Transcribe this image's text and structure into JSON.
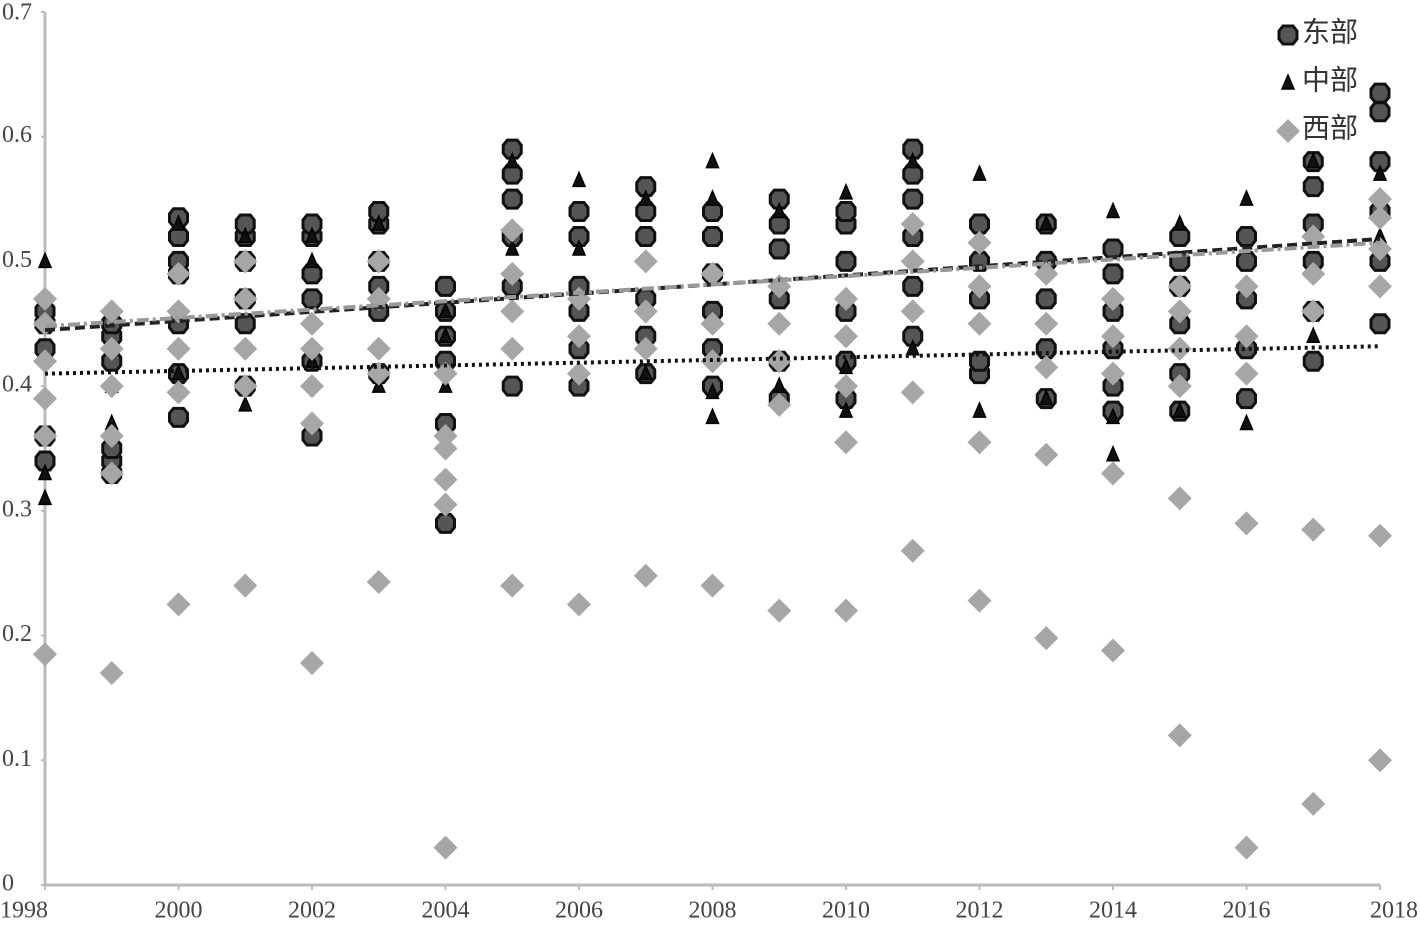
{
  "chart_data": {
    "type": "scatter",
    "xlim": [
      1998,
      2018
    ],
    "xticks": [
      1998,
      2000,
      2002,
      2004,
      2006,
      2008,
      2010,
      2012,
      2014,
      2016,
      2018
    ],
    "ylim": [
      0,
      0.7
    ],
    "yticks": [
      0,
      0.1,
      0.2,
      0.3,
      0.4,
      0.5,
      0.6,
      0.7
    ],
    "legend": "top-right",
    "series": [
      {
        "name": "东部",
        "color": "#555555",
        "marker": "circle",
        "x": [
          1998,
          1998,
          1998,
          1998,
          1998,
          1999,
          1999,
          1999,
          1999,
          1999,
          1999,
          2000,
          2000,
          2000,
          2000,
          2000,
          2000,
          2000,
          2001,
          2001,
          2001,
          2001,
          2001,
          2001,
          2002,
          2002,
          2002,
          2002,
          2002,
          2002,
          2003,
          2003,
          2003,
          2003,
          2003,
          2003,
          2004,
          2004,
          2004,
          2004,
          2004,
          2004,
          2005,
          2005,
          2005,
          2005,
          2005,
          2005,
          2006,
          2006,
          2006,
          2006,
          2006,
          2006,
          2007,
          2007,
          2007,
          2007,
          2007,
          2007,
          2008,
          2008,
          2008,
          2008,
          2008,
          2008,
          2009,
          2009,
          2009,
          2009,
          2009,
          2009,
          2010,
          2010,
          2010,
          2010,
          2010,
          2010,
          2011,
          2011,
          2011,
          2011,
          2011,
          2011,
          2012,
          2012,
          2012,
          2012,
          2012,
          2013,
          2013,
          2013,
          2013,
          2013,
          2014,
          2014,
          2014,
          2014,
          2014,
          2014,
          2015,
          2015,
          2015,
          2015,
          2015,
          2015,
          2016,
          2016,
          2016,
          2016,
          2016,
          2017,
          2017,
          2017,
          2017,
          2017,
          2017,
          2018,
          2018,
          2018,
          2018,
          2018,
          2018
        ],
        "values": [
          0.34,
          0.36,
          0.43,
          0.45,
          0.46,
          0.33,
          0.34,
          0.35,
          0.42,
          0.44,
          0.45,
          0.375,
          0.41,
          0.45,
          0.49,
          0.5,
          0.52,
          0.535,
          0.4,
          0.45,
          0.47,
          0.5,
          0.52,
          0.53,
          0.36,
          0.42,
          0.47,
          0.49,
          0.52,
          0.53,
          0.41,
          0.46,
          0.48,
          0.5,
          0.53,
          0.54,
          0.29,
          0.37,
          0.42,
          0.44,
          0.46,
          0.48,
          0.4,
          0.48,
          0.52,
          0.55,
          0.57,
          0.59,
          0.4,
          0.43,
          0.46,
          0.48,
          0.52,
          0.54,
          0.41,
          0.44,
          0.47,
          0.52,
          0.54,
          0.56,
          0.4,
          0.43,
          0.46,
          0.49,
          0.52,
          0.54,
          0.39,
          0.42,
          0.47,
          0.51,
          0.53,
          0.55,
          0.39,
          0.42,
          0.46,
          0.5,
          0.53,
          0.54,
          0.44,
          0.48,
          0.52,
          0.55,
          0.57,
          0.59,
          0.41,
          0.42,
          0.47,
          0.5,
          0.53,
          0.39,
          0.43,
          0.47,
          0.5,
          0.53,
          0.38,
          0.4,
          0.43,
          0.46,
          0.49,
          0.51,
          0.38,
          0.41,
          0.45,
          0.48,
          0.5,
          0.52,
          0.39,
          0.43,
          0.47,
          0.5,
          0.52,
          0.42,
          0.46,
          0.5,
          0.53,
          0.56,
          0.58,
          0.45,
          0.5,
          0.54,
          0.58,
          0.62,
          0.635
        ],
        "trendline": {
          "x": [
            1998,
            2018
          ],
          "values": [
            0.445,
            0.518
          ],
          "color": "#222222",
          "dash": "10 5"
        }
      },
      {
        "name": "中部",
        "color": "#111111",
        "marker": "triangle",
        "x": [
          1998,
          1998,
          1998,
          1999,
          1999,
          2000,
          2000,
          2001,
          2001,
          2002,
          2002,
          2002,
          2003,
          2003,
          2004,
          2004,
          2004,
          2005,
          2005,
          2006,
          2006,
          2007,
          2007,
          2008,
          2008,
          2008,
          2008,
          2009,
          2009,
          2010,
          2010,
          2010,
          2011,
          2011,
          2012,
          2012,
          2013,
          2013,
          2014,
          2014,
          2014,
          2015,
          2015,
          2016,
          2016,
          2017,
          2017,
          2018,
          2018
        ],
        "values": [
          0.31,
          0.33,
          0.5,
          0.37,
          0.4,
          0.41,
          0.53,
          0.385,
          0.52,
          0.42,
          0.5,
          0.52,
          0.4,
          0.53,
          0.4,
          0.44,
          0.46,
          0.51,
          0.58,
          0.51,
          0.565,
          0.41,
          0.55,
          0.375,
          0.395,
          0.55,
          0.58,
          0.4,
          0.54,
          0.38,
          0.415,
          0.555,
          0.43,
          0.58,
          0.38,
          0.57,
          0.39,
          0.53,
          0.345,
          0.375,
          0.54,
          0.38,
          0.53,
          0.37,
          0.55,
          0.44,
          0.58,
          0.52,
          0.57
        ],
        "trendline": {
          "x": [
            1998,
            2018
          ],
          "values": [
            0.41,
            0.432
          ],
          "color": "#111111",
          "dash": "3 4"
        }
      },
      {
        "name": "西部",
        "color": "#a6a6a6",
        "marker": "diamond",
        "x": [
          1998,
          1998,
          1998,
          1998,
          1998,
          1998,
          1999,
          1999,
          1999,
          1999,
          1999,
          1999,
          2000,
          2000,
          2000,
          2000,
          2000,
          2001,
          2001,
          2001,
          2001,
          2001,
          2002,
          2002,
          2002,
          2002,
          2002,
          2003,
          2003,
          2003,
          2003,
          2003,
          2004,
          2004,
          2004,
          2004,
          2004,
          2004,
          2005,
          2005,
          2005,
          2005,
          2005,
          2006,
          2006,
          2006,
          2006,
          2007,
          2007,
          2007,
          2007,
          2008,
          2008,
          2008,
          2008,
          2009,
          2009,
          2009,
          2009,
          2009,
          2010,
          2010,
          2010,
          2010,
          2010,
          2011,
          2011,
          2011,
          2011,
          2011,
          2012,
          2012,
          2012,
          2012,
          2012,
          2013,
          2013,
          2013,
          2013,
          2013,
          2014,
          2014,
          2014,
          2014,
          2014,
          2015,
          2015,
          2015,
          2015,
          2015,
          2015,
          2016,
          2016,
          2016,
          2016,
          2016,
          2017,
          2017,
          2017,
          2017,
          2017,
          2018,
          2018,
          2018,
          2018,
          2018,
          2018
        ],
        "values": [
          0.185,
          0.36,
          0.39,
          0.42,
          0.45,
          0.47,
          0.17,
          0.33,
          0.36,
          0.4,
          0.43,
          0.46,
          0.225,
          0.395,
          0.43,
          0.46,
          0.49,
          0.24,
          0.4,
          0.43,
          0.47,
          0.5,
          0.178,
          0.37,
          0.4,
          0.43,
          0.45,
          0.243,
          0.41,
          0.43,
          0.47,
          0.5,
          0.03,
          0.305,
          0.325,
          0.35,
          0.36,
          0.41,
          0.24,
          0.43,
          0.46,
          0.49,
          0.525,
          0.225,
          0.41,
          0.44,
          0.47,
          0.248,
          0.43,
          0.46,
          0.5,
          0.24,
          0.42,
          0.45,
          0.49,
          0.22,
          0.385,
          0.42,
          0.45,
          0.48,
          0.22,
          0.355,
          0.4,
          0.44,
          0.47,
          0.268,
          0.395,
          0.46,
          0.5,
          0.53,
          0.228,
          0.355,
          0.45,
          0.48,
          0.515,
          0.198,
          0.345,
          0.415,
          0.45,
          0.49,
          0.188,
          0.33,
          0.41,
          0.44,
          0.47,
          0.12,
          0.31,
          0.4,
          0.43,
          0.46,
          0.48,
          0.03,
          0.29,
          0.41,
          0.44,
          0.48,
          0.065,
          0.285,
          0.46,
          0.49,
          0.52,
          0.1,
          0.28,
          0.48,
          0.51,
          0.535,
          0.55
        ],
        "trendline": {
          "x": [
            1998,
            2018
          ],
          "values": [
            0.448,
            0.515
          ],
          "color": "#999999",
          "dash": "12 4 3 4"
        }
      }
    ]
  }
}
